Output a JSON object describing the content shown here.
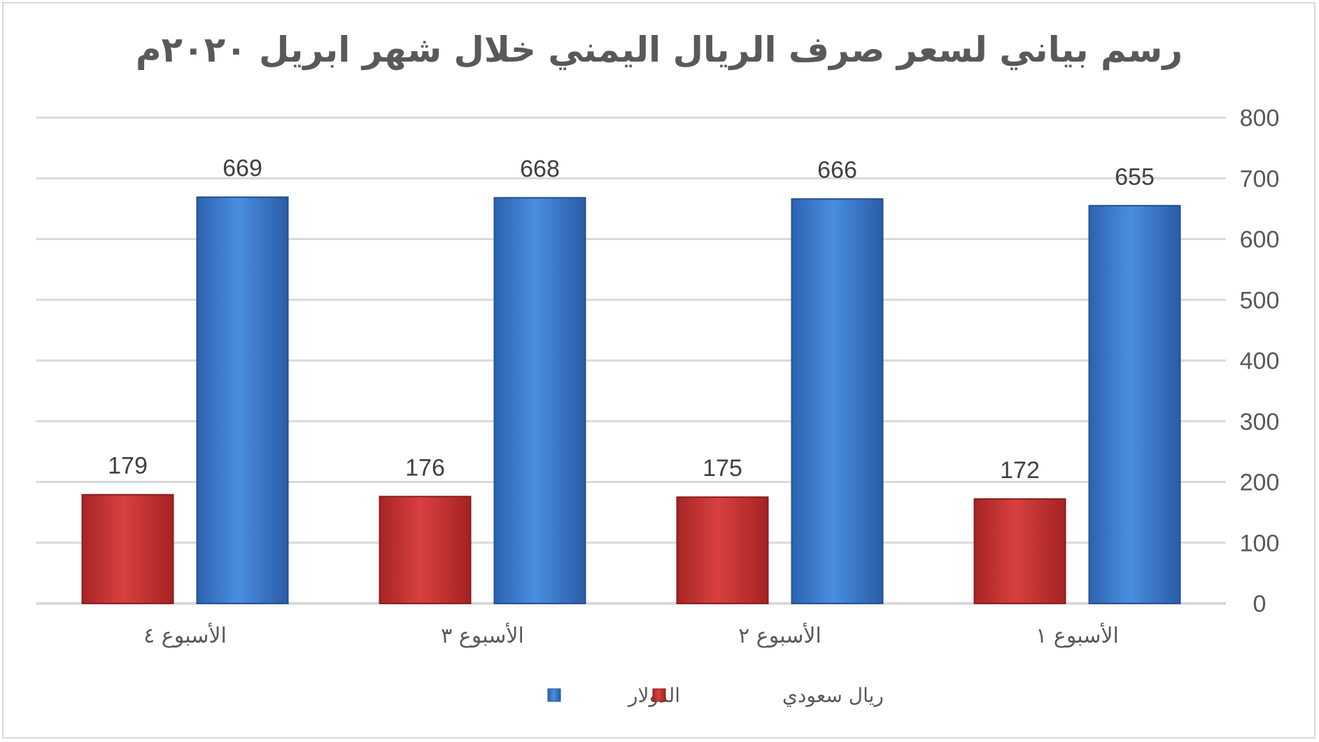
{
  "chart_data": {
    "type": "bar",
    "title": "رسم بياني لسعر صرف الريال اليمني خلال شهر ابريل ٢٠٢٠م",
    "categories": [
      "الأسبوع ١",
      "الأسبوع ٢",
      "الأسبوع ٣",
      "الأسبوع ٤"
    ],
    "category_order": "right-to-left",
    "series": [
      {
        "name": "الدولار",
        "values": [
          655,
          666,
          668,
          669
        ],
        "color": "#3a7bd5"
      },
      {
        "name": "ريال سعودي",
        "values": [
          172,
          175,
          176,
          179
        ],
        "color": "#c83232"
      }
    ],
    "ylim": [
      0,
      800
    ],
    "yticks": [
      "0",
      "100",
      "200",
      "300",
      "400",
      "500",
      "600",
      "700",
      "800"
    ],
    "y_axis_side": "right",
    "grid": true,
    "legend_position": "bottom",
    "data_labels": true
  }
}
